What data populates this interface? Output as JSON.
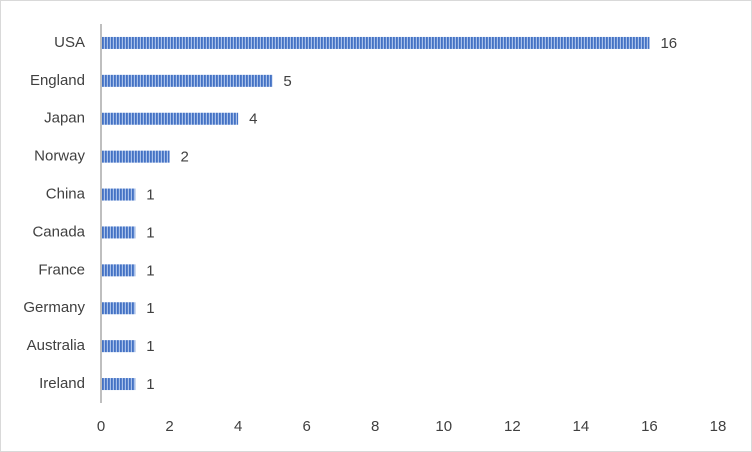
{
  "chart_data": {
    "type": "bar",
    "orientation": "horizontal",
    "categories": [
      "USA",
      "England",
      "Japan",
      "Norway",
      "China",
      "Canada",
      "France",
      "Germany",
      "Australia",
      "Ireland"
    ],
    "values": [
      16,
      5,
      4,
      2,
      1,
      1,
      1,
      1,
      1,
      1
    ],
    "color": "#4472c4",
    "xlim": [
      0,
      18
    ],
    "xticks": [
      0,
      2,
      4,
      6,
      8,
      10,
      12,
      14,
      16,
      18
    ],
    "grid": false
  }
}
